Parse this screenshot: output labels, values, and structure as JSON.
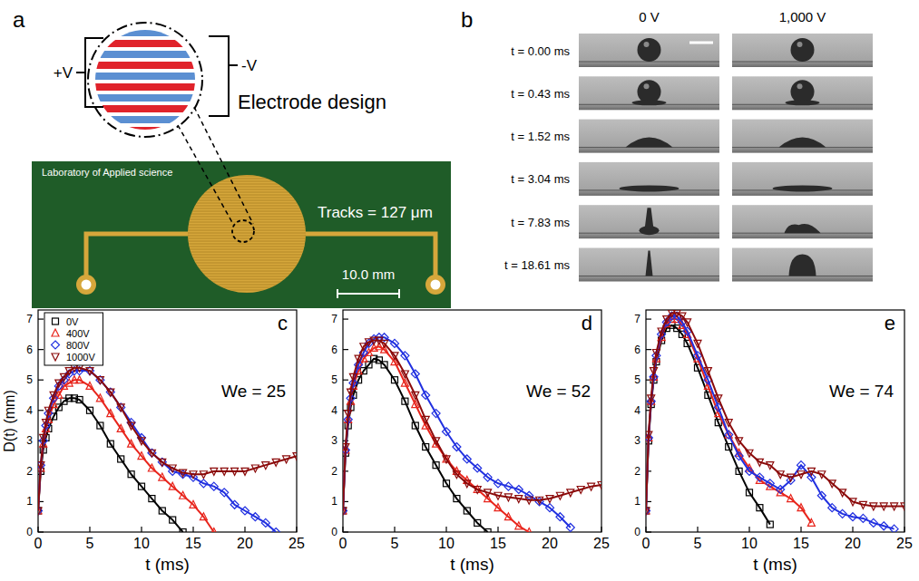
{
  "chart_data": [
    {
      "type": "line",
      "panel_label": "c",
      "annotations": [
        "We = 25"
      ],
      "x_label": "t  (ms)",
      "y_label": "D(t)  (mm)",
      "xlim": [
        0,
        25
      ],
      "xticks": [
        0,
        5,
        10,
        15,
        20,
        25
      ],
      "ylim": [
        0,
        7.3
      ],
      "yticks": [
        0,
        1,
        2,
        3,
        4,
        5,
        6,
        7
      ],
      "legend": "top-left",
      "x": [
        0,
        0.25,
        0.5,
        0.75,
        1,
        1.5,
        2,
        2.5,
        3,
        3.5,
        4,
        5,
        6,
        7,
        8,
        9,
        10,
        11,
        12,
        13,
        14,
        15,
        16,
        17,
        18,
        19,
        20,
        21,
        22,
        23,
        24,
        25
      ],
      "series": [
        {
          "name": "0V",
          "color": "#000000",
          "marker": "square",
          "line_style": "solid",
          "values": [
            0.7,
            2.0,
            2.7,
            3.1,
            3.4,
            3.8,
            4.1,
            4.3,
            4.4,
            4.4,
            4.35,
            4.0,
            3.5,
            2.9,
            2.4,
            1.9,
            1.5,
            1.1,
            0.7,
            0.4,
            0,
            null,
            null,
            null,
            null,
            null,
            null,
            null,
            null,
            null,
            null,
            null
          ]
        },
        {
          "name": "400V",
          "color": "#e8251c",
          "marker": "triangle-up",
          "line_style": "solid",
          "values": [
            0.7,
            2.1,
            2.9,
            3.4,
            3.7,
            4.2,
            4.5,
            4.8,
            4.9,
            5.0,
            5.0,
            4.8,
            4.4,
            3.9,
            3.4,
            2.9,
            2.5,
            2.1,
            1.8,
            1.5,
            1.2,
            0.9,
            0.5,
            0,
            null,
            null,
            null,
            null,
            null,
            null,
            null,
            null
          ]
        },
        {
          "name": "800V",
          "color": "#2130e0",
          "marker": "diamond",
          "line_style": "solid",
          "values": [
            0.7,
            2.2,
            3.0,
            3.5,
            3.9,
            4.4,
            4.8,
            5.0,
            5.2,
            5.3,
            5.3,
            5.3,
            5.0,
            4.6,
            4.1,
            3.6,
            3.1,
            2.6,
            2.3,
            2.0,
            1.9,
            1.8,
            1.6,
            1.5,
            1.3,
            0.9,
            0.7,
            0.5,
            0.3,
            0,
            null,
            null
          ]
        },
        {
          "name": "1000V",
          "color": "#8b0a0a",
          "marker": "triangle-down",
          "line_style": "solid",
          "values": [
            0.7,
            2.2,
            3.1,
            3.6,
            4.0,
            4.5,
            4.9,
            5.1,
            5.3,
            5.4,
            5.4,
            5.3,
            5.0,
            4.6,
            4.1,
            3.5,
            3.0,
            2.6,
            2.3,
            2.1,
            1.95,
            1.9,
            1.9,
            2.0,
            2.0,
            2.0,
            2.0,
            2.1,
            2.2,
            2.3,
            2.4,
            2.5
          ]
        }
      ]
    },
    {
      "type": "line",
      "panel_label": "d",
      "annotations": [
        "We = 52"
      ],
      "x_label": "t  (ms)",
      "xlim": [
        0,
        25
      ],
      "xticks": [
        0,
        5,
        10,
        15,
        20,
        25
      ],
      "ylim": [
        0,
        7.3
      ],
      "yticks": [
        0,
        1,
        2,
        3,
        4,
        5,
        6,
        7
      ],
      "x": [
        0,
        0.25,
        0.5,
        0.75,
        1,
        1.5,
        2,
        2.5,
        3,
        3.5,
        4,
        5,
        6,
        7,
        8,
        9,
        10,
        11,
        12,
        13,
        14,
        15,
        16,
        17,
        18,
        19,
        20,
        21,
        22,
        23,
        24,
        25
      ],
      "series": [
        {
          "color": "#000000",
          "marker": "square",
          "line_style": "solid",
          "values": [
            0.7,
            2.6,
            3.5,
            4.1,
            4.5,
            5.0,
            5.3,
            5.5,
            5.7,
            5.65,
            5.5,
            5.0,
            4.3,
            3.5,
            2.8,
            2.2,
            1.6,
            1.1,
            0.7,
            0.3,
            0,
            null,
            null,
            null,
            null,
            null,
            null,
            null,
            null,
            null,
            null,
            null
          ]
        },
        {
          "color": "#e8251c",
          "marker": "triangle-up",
          "line_style": "solid",
          "values": [
            0.7,
            2.7,
            3.7,
            4.3,
            4.8,
            5.3,
            5.7,
            5.9,
            6.05,
            6.1,
            6.0,
            5.6,
            4.9,
            4.2,
            3.5,
            2.9,
            2.4,
            2.0,
            1.7,
            1.4,
            1.1,
            0.8,
            0.5,
            0.2,
            0,
            null,
            null,
            null,
            null,
            null,
            null,
            null
          ]
        },
        {
          "color": "#2130e0",
          "marker": "diamond",
          "line_style": "solid",
          "values": [
            0.7,
            2.7,
            3.7,
            4.4,
            4.9,
            5.5,
            5.9,
            6.2,
            6.35,
            6.4,
            6.4,
            6.2,
            5.8,
            5.2,
            4.5,
            3.9,
            3.3,
            2.8,
            2.4,
            2.1,
            1.8,
            1.6,
            1.5,
            1.4,
            1.2,
            1.0,
            0.8,
            0.5,
            0.15,
            null,
            null,
            null
          ]
        },
        {
          "color": "#8b0a0a",
          "marker": "triangle-down",
          "line_style": "solid",
          "values": [
            0.7,
            2.8,
            3.9,
            4.6,
            5.1,
            5.7,
            6.1,
            6.25,
            6.3,
            6.3,
            6.2,
            5.8,
            5.2,
            4.5,
            3.7,
            3.0,
            2.4,
            1.9,
            1.6,
            1.4,
            1.3,
            1.2,
            1.15,
            1.1,
            1.05,
            1.05,
            1.1,
            1.2,
            1.3,
            1.4,
            1.5,
            1.55
          ]
        }
      ]
    },
    {
      "type": "line",
      "panel_label": "e",
      "annotations": [
        "We = 74"
      ],
      "x_label": "t  (ms)",
      "xlim": [
        0,
        25
      ],
      "xticks": [
        0,
        5,
        10,
        15,
        20,
        25
      ],
      "ylim": [
        0,
        7.3
      ],
      "yticks": [
        0,
        1,
        2,
        3,
        4,
        5,
        6,
        7
      ],
      "x": [
        0,
        0.25,
        0.5,
        0.75,
        1,
        1.5,
        2,
        2.5,
        3,
        3.5,
        4,
        5,
        6,
        7,
        8,
        9,
        10,
        11,
        12,
        13,
        14,
        15,
        16,
        17,
        18,
        19,
        20,
        21,
        22,
        23,
        24,
        25
      ],
      "series": [
        {
          "color": "#000000",
          "marker": "square",
          "line_style": "solid",
          "values": [
            0.7,
            3.0,
            4.2,
            5.0,
            5.6,
            6.3,
            6.7,
            6.8,
            6.7,
            6.5,
            6.2,
            5.4,
            4.5,
            3.6,
            2.8,
            2.0,
            1.3,
            0.8,
            0.25,
            null,
            null,
            null,
            null,
            null,
            null,
            null,
            null,
            null,
            null,
            null,
            null,
            null
          ]
        },
        {
          "color": "#e8251c",
          "marker": "triangle-up",
          "line_style": "solid",
          "values": [
            0.7,
            3.1,
            4.3,
            5.1,
            5.7,
            6.4,
            6.85,
            7.0,
            7.0,
            6.8,
            6.5,
            5.7,
            4.8,
            3.9,
            3.2,
            2.6,
            2.1,
            1.7,
            1.5,
            1.3,
            1.1,
            0.8,
            0.3,
            null,
            null,
            null,
            null,
            null,
            null,
            null,
            null,
            null
          ]
        },
        {
          "color": "#2130e0",
          "marker": "diamond",
          "line_style": "solid",
          "values": [
            0.7,
            3.1,
            4.3,
            5.1,
            5.8,
            6.5,
            6.9,
            7.1,
            7.1,
            6.9,
            6.6,
            5.8,
            5.0,
            4.1,
            3.2,
            2.5,
            2.0,
            1.8,
            1.6,
            1.4,
            1.7,
            2.2,
            1.8,
            1.2,
            0.8,
            0.6,
            0.5,
            0.45,
            0.3,
            0.2,
            0.1,
            null
          ]
        },
        {
          "color": "#8b0a0a",
          "marker": "triangle-down",
          "line_style": "solid",
          "values": [
            0.7,
            3.2,
            4.4,
            5.3,
            5.9,
            6.6,
            7.0,
            7.2,
            7.2,
            7.1,
            6.9,
            6.2,
            5.3,
            4.4,
            3.6,
            3.0,
            2.6,
            2.3,
            2.2,
            1.9,
            1.8,
            1.9,
            2.0,
            1.9,
            1.6,
            1.3,
            1.0,
            0.9,
            0.85,
            0.85,
            0.85,
            0.85
          ]
        }
      ]
    }
  ],
  "diagram": {
    "panel_label": "a",
    "electrode_title": "Electrode design",
    "plus_label": "+V",
    "minus_label": "-V",
    "board_label": "Laboratory of Applied science",
    "tracks_label": "Tracks = 127 μm",
    "scale_label": "10.0 mm"
  },
  "photos": {
    "panel_label": "b",
    "columns": [
      "0 V",
      "1,000 V"
    ],
    "times": [
      "t = 0.00 ms",
      "t = 0.43 ms",
      "t = 1.52 ms",
      "t = 3.04 ms",
      "t = 7.83 ms",
      "t = 18.61 ms"
    ]
  }
}
